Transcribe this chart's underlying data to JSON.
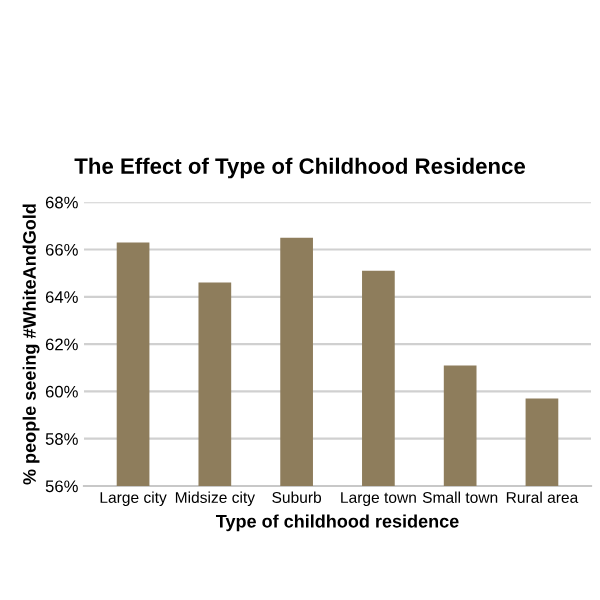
{
  "chart_data": {
    "type": "bar",
    "title": "The Effect of Type of Childhood Residence",
    "xlabel": "Type of childhood residence",
    "ylabel": "% people seeing #WhiteAndGold",
    "categories": [
      "Large city",
      "Midsize city",
      "Suburb",
      "Large town",
      "Small town",
      "Rural area"
    ],
    "series": [
      {
        "color": "#8e7d5c",
        "values": [
          66.3,
          64.6,
          66.5,
          65.1,
          61.1,
          59.7
        ]
      }
    ],
    "ylim": [
      56,
      68
    ],
    "yticks": [
      {
        "value": 56,
        "label": "56%"
      },
      {
        "value": 58,
        "label": "58%"
      },
      {
        "value": 60,
        "label": "60%"
      },
      {
        "value": 62,
        "label": "62%"
      },
      {
        "value": 64,
        "label": "64%"
      },
      {
        "value": 66,
        "label": "66%"
      },
      {
        "value": 68,
        "label": "68%"
      }
    ],
    "grid": "y",
    "legend": false
  }
}
